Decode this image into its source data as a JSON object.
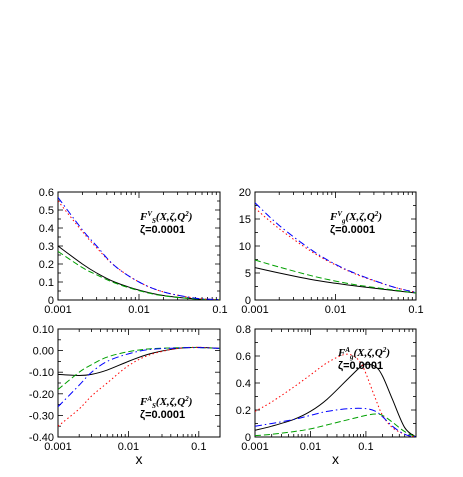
{
  "chart_data": [
    {
      "type": "line",
      "annotation": {
        "base": "F",
        "sup": "V",
        "sub": "S",
        "args": "(X,ζ,Q",
        "sq": "2",
        "close": ")",
        "zeta": "ζ=0.0001"
      },
      "xscale": "log",
      "xlim": [
        0.001,
        0.1
      ],
      "xticks": [
        0.001,
        0.01,
        0.1
      ],
      "xtick_labels": [
        "0.001",
        "0.01",
        "0.1"
      ],
      "ylim": [
        0,
        0.6
      ],
      "yticks": [
        0,
        0.1,
        0.2,
        0.3,
        0.4,
        0.5,
        0.6
      ],
      "ytick_labels": [
        "0",
        "0.1",
        "0.2",
        "0.3",
        "0.4",
        "0.5",
        "0.6"
      ],
      "xlabel": "",
      "series": [
        {
          "color": "#000000",
          "dash": "solid",
          "x": [
            0.001,
            0.002,
            0.003,
            0.005,
            0.01,
            0.02,
            0.05,
            0.1
          ],
          "y": [
            0.3,
            0.2,
            0.15,
            0.1,
            0.055,
            0.025,
            0.006,
            0.001
          ]
        },
        {
          "color": "#00a000",
          "dash": "dashed",
          "x": [
            0.001,
            0.002,
            0.003,
            0.005,
            0.01,
            0.02,
            0.05,
            0.1
          ],
          "y": [
            0.27,
            0.18,
            0.14,
            0.095,
            0.052,
            0.023,
            0.006,
            0.001
          ]
        },
        {
          "color": "#ff0000",
          "dash": "dotted",
          "x": [
            0.001,
            0.002,
            0.003,
            0.005,
            0.01,
            0.02,
            0.05,
            0.1
          ],
          "y": [
            0.55,
            0.38,
            0.29,
            0.19,
            0.1,
            0.045,
            0.01,
            0.002
          ]
        },
        {
          "color": "#0000ff",
          "dash": "dashdot",
          "x": [
            0.001,
            0.002,
            0.003,
            0.005,
            0.01,
            0.02,
            0.05,
            0.1
          ],
          "y": [
            0.57,
            0.39,
            0.3,
            0.19,
            0.1,
            0.045,
            0.01,
            0.002
          ]
        }
      ]
    },
    {
      "type": "line",
      "annotation": {
        "base": "F",
        "sup": "V",
        "sub": "g",
        "args": "(X,ζ,Q",
        "sq": "2",
        "close": ")",
        "zeta": "ζ=0.0001"
      },
      "xscale": "log",
      "xlim": [
        0.001,
        0.1
      ],
      "xticks": [
        0.001,
        0.01,
        0.1
      ],
      "xtick_labels": [
        "0.001",
        "0.01",
        "0.1"
      ],
      "ylim": [
        0,
        20
      ],
      "yticks": [
        0,
        5,
        10,
        15,
        20
      ],
      "ytick_labels": [
        "0",
        "5",
        "10",
        "15",
        "20"
      ],
      "xlabel": "",
      "series": [
        {
          "color": "#000000",
          "dash": "solid",
          "x": [
            0.001,
            0.002,
            0.005,
            0.01,
            0.02,
            0.05,
            0.1
          ],
          "y": [
            6.0,
            5.0,
            3.8,
            3.1,
            2.5,
            1.8,
            1.3
          ]
        },
        {
          "color": "#00a000",
          "dash": "dashed",
          "x": [
            0.001,
            0.002,
            0.005,
            0.01,
            0.02,
            0.05,
            0.1
          ],
          "y": [
            7.4,
            6.1,
            4.5,
            3.5,
            2.7,
            1.9,
            1.3
          ]
        },
        {
          "color": "#ff0000",
          "dash": "dotted",
          "x": [
            0.001,
            0.002,
            0.005,
            0.01,
            0.02,
            0.05,
            0.1
          ],
          "y": [
            17.0,
            13.2,
            9.0,
            6.5,
            4.5,
            2.5,
            1.4
          ]
        },
        {
          "color": "#0000ff",
          "dash": "dashdot",
          "x": [
            0.001,
            0.002,
            0.005,
            0.01,
            0.02,
            0.05,
            0.1
          ],
          "y": [
            18.0,
            13.8,
            9.3,
            6.6,
            4.6,
            2.5,
            1.4
          ]
        }
      ]
    },
    {
      "type": "line",
      "annotation": {
        "base": "F",
        "sup": "A",
        "sub": "S",
        "args": "(X,ζ,Q",
        "sq": "2",
        "close": ")",
        "zeta": "ζ=0.0001"
      },
      "xscale": "log",
      "xlim": [
        0.001,
        0.2
      ],
      "xticks": [
        0.001,
        0.01,
        0.1
      ],
      "xtick_labels": [
        "0.001",
        "0.01",
        "0.1"
      ],
      "ylim": [
        -0.4,
        0.1
      ],
      "yticks": [
        -0.4,
        -0.3,
        -0.2,
        -0.1,
        0,
        0.1
      ],
      "ytick_labels": [
        "-0.40",
        "-0.30",
        "-0.20",
        "-0.10",
        "0.00",
        "0.10"
      ],
      "xlabel": "x",
      "series": [
        {
          "color": "#000000",
          "dash": "solid",
          "x": [
            0.001,
            0.002,
            0.003,
            0.005,
            0.01,
            0.02,
            0.05,
            0.1,
            0.2
          ],
          "y": [
            -0.11,
            -0.115,
            -0.11,
            -0.09,
            -0.05,
            -0.015,
            0.01,
            0.015,
            0.01
          ]
        },
        {
          "color": "#00a000",
          "dash": "dashed",
          "x": [
            0.001,
            0.002,
            0.003,
            0.005,
            0.01,
            0.02,
            0.05,
            0.1,
            0.2
          ],
          "y": [
            -0.18,
            -0.1,
            -0.065,
            -0.03,
            -0.005,
            0.008,
            0.013,
            0.014,
            0.01
          ]
        },
        {
          "color": "#ff0000",
          "dash": "dotted",
          "x": [
            0.001,
            0.002,
            0.003,
            0.005,
            0.01,
            0.02,
            0.05,
            0.1,
            0.2
          ],
          "y": [
            -0.35,
            -0.27,
            -0.21,
            -0.15,
            -0.07,
            -0.02,
            0.01,
            0.015,
            0.01
          ]
        },
        {
          "color": "#0000ff",
          "dash": "dashdot",
          "x": [
            0.001,
            0.002,
            0.003,
            0.005,
            0.01,
            0.02,
            0.05,
            0.1,
            0.2
          ],
          "y": [
            -0.26,
            -0.16,
            -0.1,
            -0.05,
            -0.015,
            0.005,
            0.012,
            0.014,
            0.01
          ]
        }
      ]
    },
    {
      "type": "line",
      "annotation": {
        "base": "F",
        "sup": "A",
        "sub": "g",
        "args": "(X,ζ,Q",
        "sq": "2",
        "close": ")",
        "zeta": "ζ=0.0001"
      },
      "xscale": "log",
      "xlim": [
        0.001,
        0.8
      ],
      "xticks": [
        0.001,
        0.01,
        0.1
      ],
      "xtick_labels": [
        "0.001",
        "0.01",
        "0.1"
      ],
      "ylim": [
        0,
        0.8
      ],
      "yticks": [
        0,
        0.2,
        0.4,
        0.6,
        0.8
      ],
      "ytick_labels": [
        "0",
        "0.2",
        "0.4",
        "0.6",
        "0.8"
      ],
      "xlabel": "x",
      "series": [
        {
          "color": "#000000",
          "dash": "solid",
          "x": [
            0.001,
            0.002,
            0.005,
            0.01,
            0.02,
            0.05,
            0.08,
            0.1,
            0.15,
            0.2,
            0.3,
            0.5,
            0.8
          ],
          "y": [
            0.05,
            0.08,
            0.13,
            0.19,
            0.28,
            0.44,
            0.52,
            0.54,
            0.52,
            0.45,
            0.28,
            0.07,
            0.0
          ]
        },
        {
          "color": "#00a000",
          "dash": "dashed",
          "x": [
            0.001,
            0.002,
            0.005,
            0.01,
            0.02,
            0.05,
            0.1,
            0.15,
            0.2,
            0.3,
            0.5,
            0.8
          ],
          "y": [
            0.01,
            0.02,
            0.04,
            0.06,
            0.09,
            0.13,
            0.16,
            0.17,
            0.16,
            0.11,
            0.04,
            0.0
          ]
        },
        {
          "color": "#ff0000",
          "dash": "dotted",
          "x": [
            0.001,
            0.002,
            0.005,
            0.01,
            0.02,
            0.04,
            0.06,
            0.08,
            0.1,
            0.15,
            0.2,
            0.3,
            0.5,
            0.8
          ],
          "y": [
            0.19,
            0.26,
            0.37,
            0.46,
            0.55,
            0.61,
            0.6,
            0.55,
            0.47,
            0.28,
            0.16,
            0.07,
            0.02,
            0.0
          ]
        },
        {
          "color": "#0000ff",
          "dash": "dashdot",
          "x": [
            0.001,
            0.002,
            0.005,
            0.01,
            0.02,
            0.05,
            0.1,
            0.15,
            0.2,
            0.3,
            0.5,
            0.8
          ],
          "y": [
            0.08,
            0.1,
            0.13,
            0.16,
            0.19,
            0.21,
            0.21,
            0.19,
            0.15,
            0.08,
            0.02,
            0.0
          ]
        }
      ]
    }
  ]
}
